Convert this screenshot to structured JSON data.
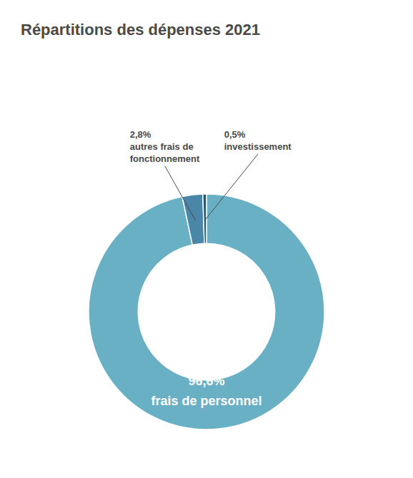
{
  "chart_data": {
    "type": "donut",
    "title": "Répartitions des dépenses 2021",
    "categories": [
      "frais de personnel",
      "autres frais de\nfonctionnement",
      "investissement"
    ],
    "values": [
      96.6,
      2.8,
      0.5
    ],
    "value_labels": [
      "96,6%",
      "2,8%",
      "0,5%"
    ],
    "colors": [
      "#6ab0c5",
      "#4a86a8",
      "#1e5a7a"
    ],
    "data_labels": true
  }
}
